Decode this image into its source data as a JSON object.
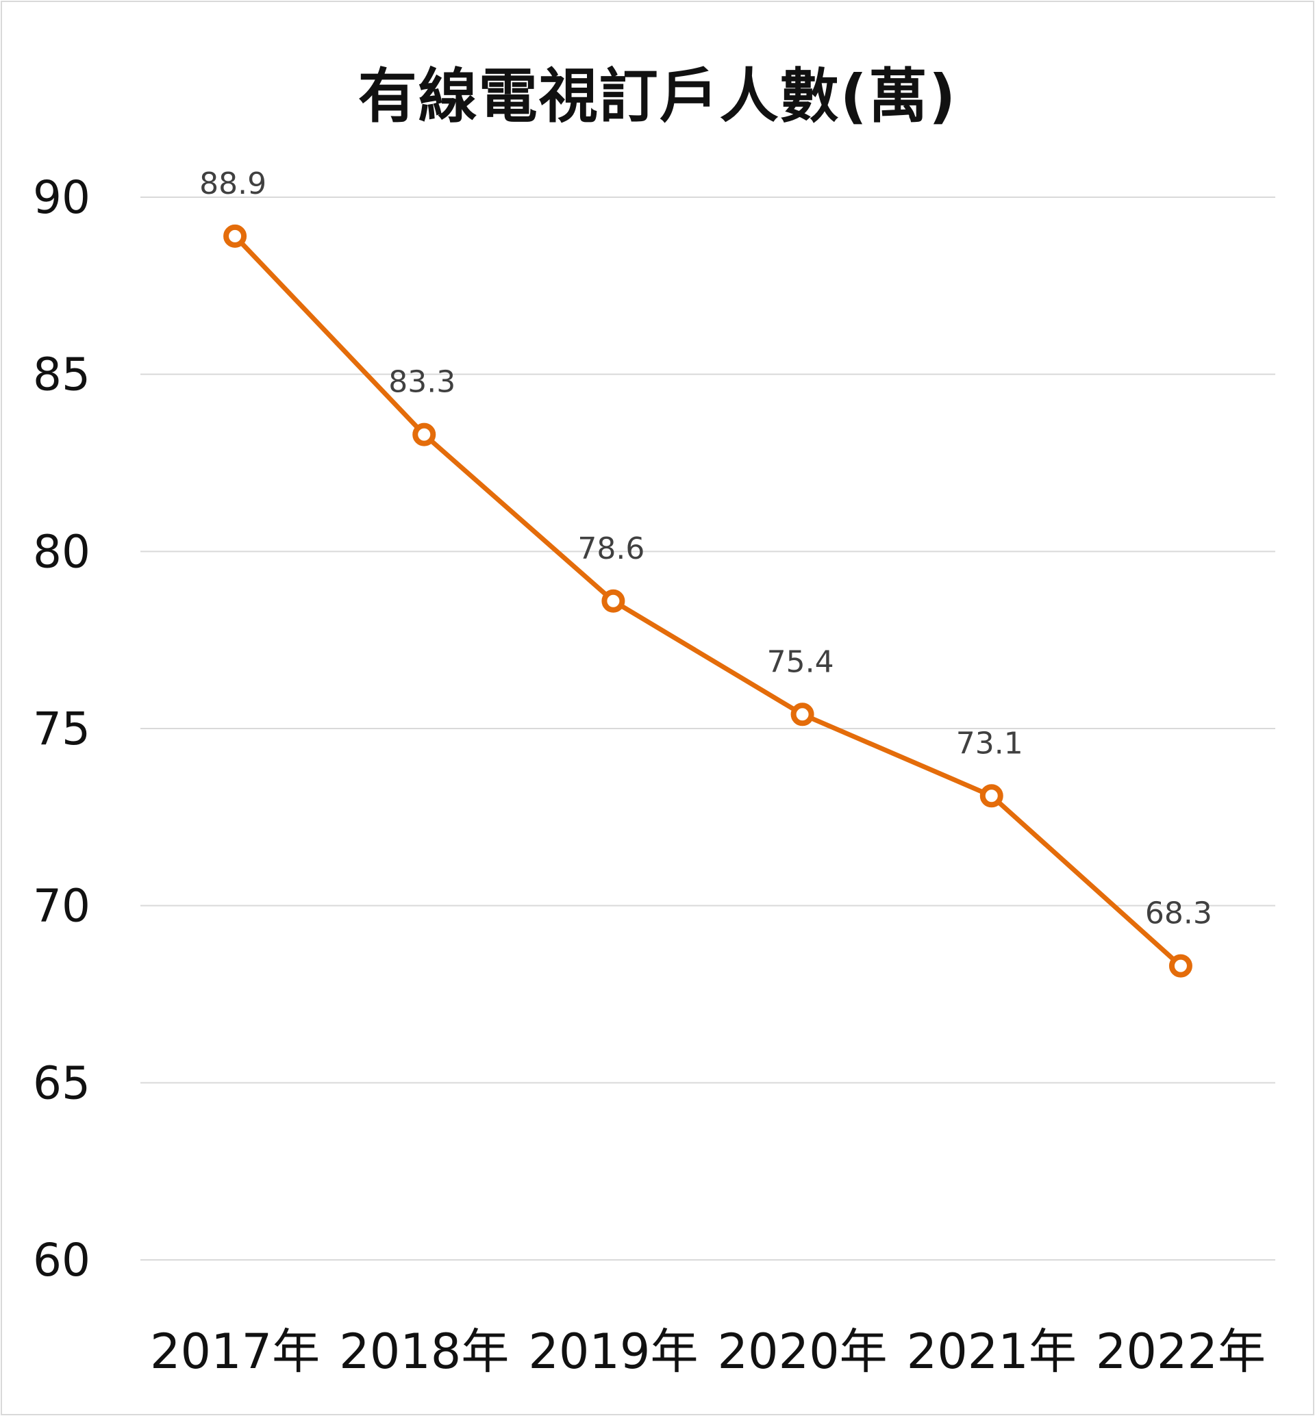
{
  "chart_data": {
    "type": "line",
    "title": "有線電視訂戶人數(萬)",
    "categories": [
      "2017年",
      "2018年",
      "2019年",
      "2020年",
      "2021年",
      "2022年"
    ],
    "series": [
      {
        "values": [
          88.9,
          83.3,
          78.6,
          75.4,
          73.1,
          68.3
        ],
        "data_labels": [
          "88.9",
          "83.3",
          "78.6",
          "75.4",
          "73.1",
          "68.3"
        ],
        "color": "#E46C0A"
      }
    ],
    "ylim": [
      60,
      90
    ],
    "yticks": [
      "60",
      "65",
      "70",
      "75",
      "80",
      "85",
      "90"
    ],
    "xlabel": "",
    "ylabel": "",
    "grid": true,
    "legend": "none",
    "colors": {
      "line": "#E46C0A",
      "marker_fill": "#ffffff",
      "gridline": "#d9d9d9"
    }
  }
}
